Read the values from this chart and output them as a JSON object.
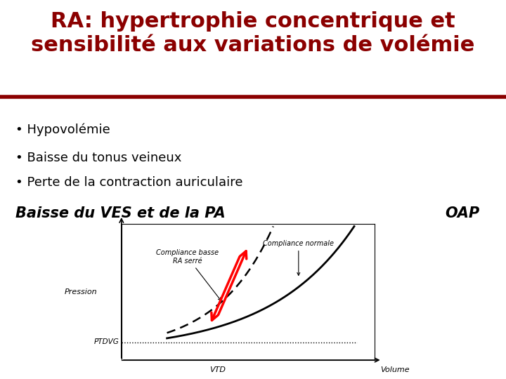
{
  "title_line1": "RA: hypertrophie concentrique et",
  "title_line2": "sensibilité aux variations de volémie",
  "title_color": "#8B0000",
  "title_fontsize": 22,
  "separator_color": "#8B0000",
  "bg_color": "#FFFFFF",
  "bullets": [
    "• Hypovolémie",
    "• Baisse du tonus veineux",
    "• Perte de la contraction auriculaire"
  ],
  "bullet_fontsize": 13,
  "bold_left": "Baisse du VES et de la PA",
  "bold_right": "OAP",
  "bold_fontsize": 15,
  "graph_label_pression": "Pression",
  "graph_label_volume": "Volume",
  "graph_label_vtd": "VTD",
  "graph_label_ptdvg": "PTDVG",
  "graph_label_compliance_basse": "Compliance basse\nRA serré",
  "graph_label_compliance_normale": "Compliance normale",
  "text_color": "#000000"
}
